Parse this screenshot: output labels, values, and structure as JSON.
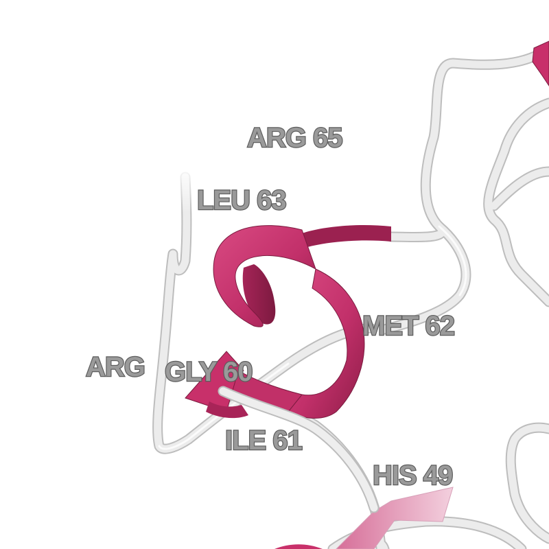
{
  "residue_labels": {
    "arg65": "ARG 65",
    "leu63": "LEU 63",
    "met62": "MET 62",
    "arg": "ARG",
    "gly60": "GLY 60",
    "ile61": "ILE 61",
    "his49": "HIS 49"
  },
  "colors": {
    "background": "#ffffff",
    "coil": "#ececec",
    "helix": "#c8306a",
    "helix_dark": "#8e1d48",
    "sheet_light": "#e7a8c1",
    "label_fill": "#9a9a9a",
    "label_outline": "#5c5c5c"
  }
}
